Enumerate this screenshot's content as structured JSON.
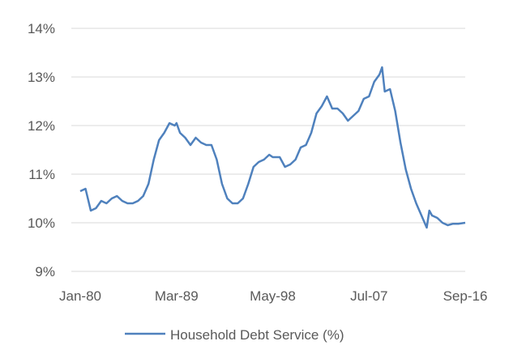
{
  "chart_data": {
    "type": "line",
    "title": "",
    "xlabel": "",
    "ylabel": "",
    "y_format": "percent",
    "ylim": [
      9,
      14
    ],
    "y_ticks": [
      9,
      10,
      11,
      12,
      13,
      14
    ],
    "y_tick_labels": [
      "9%",
      "10%",
      "11%",
      "12%",
      "13%",
      "14%"
    ],
    "x_ticks": [
      "Jan-80",
      "Mar-89",
      "May-98",
      "Jul-07",
      "Sep-16"
    ],
    "grid": true,
    "legend_position": "bottom",
    "series": [
      {
        "name": "Household Debt Service (%)",
        "color": "#4f81bd",
        "points": [
          [
            "Jan-80",
            10.65
          ],
          [
            "Jul-80",
            10.7
          ],
          [
            "Jan-81",
            10.25
          ],
          [
            "Jul-81",
            10.3
          ],
          [
            "Jan-82",
            10.45
          ],
          [
            "Jul-82",
            10.4
          ],
          [
            "Jan-83",
            10.5
          ],
          [
            "Jul-83",
            10.55
          ],
          [
            "Jan-84",
            10.45
          ],
          [
            "Jul-84",
            10.4
          ],
          [
            "Jan-85",
            10.4
          ],
          [
            "Jul-85",
            10.45
          ],
          [
            "Jan-86",
            10.55
          ],
          [
            "Jul-86",
            10.8
          ],
          [
            "Jan-87",
            11.3
          ],
          [
            "Jul-87",
            11.7
          ],
          [
            "Jan-88",
            11.85
          ],
          [
            "Jul-88",
            12.05
          ],
          [
            "Jan-89",
            12.0
          ],
          [
            "Mar-89",
            12.05
          ],
          [
            "Jul-89",
            11.85
          ],
          [
            "Jan-90",
            11.75
          ],
          [
            "Jul-90",
            11.6
          ],
          [
            "Jan-91",
            11.75
          ],
          [
            "Jul-91",
            11.65
          ],
          [
            "Jan-92",
            11.6
          ],
          [
            "Jul-92",
            11.6
          ],
          [
            "Jan-93",
            11.3
          ],
          [
            "Jul-93",
            10.8
          ],
          [
            "Jan-94",
            10.5
          ],
          [
            "Jul-94",
            10.4
          ],
          [
            "Jan-95",
            10.4
          ],
          [
            "Jul-95",
            10.5
          ],
          [
            "Jan-96",
            10.8
          ],
          [
            "Jul-96",
            11.15
          ],
          [
            "Jan-97",
            11.25
          ],
          [
            "Jul-97",
            11.3
          ],
          [
            "Jan-98",
            11.4
          ],
          [
            "May-98",
            11.35
          ],
          [
            "Jan-99",
            11.35
          ],
          [
            "Jul-99",
            11.15
          ],
          [
            "Jan-00",
            11.2
          ],
          [
            "Jul-00",
            11.3
          ],
          [
            "Jan-01",
            11.55
          ],
          [
            "Jul-01",
            11.6
          ],
          [
            "Jan-02",
            11.85
          ],
          [
            "Jul-02",
            12.25
          ],
          [
            "Jan-03",
            12.4
          ],
          [
            "Jul-03",
            12.6
          ],
          [
            "Jan-04",
            12.35
          ],
          [
            "Jul-04",
            12.35
          ],
          [
            "Jan-05",
            12.25
          ],
          [
            "Jul-05",
            12.1
          ],
          [
            "Jan-06",
            12.2
          ],
          [
            "Jul-06",
            12.3
          ],
          [
            "Jan-07",
            12.55
          ],
          [
            "Jul-07",
            12.6
          ],
          [
            "Jan-08",
            12.9
          ],
          [
            "Jul-08",
            13.05
          ],
          [
            "Oct-08",
            13.2
          ],
          [
            "Jan-09",
            12.7
          ],
          [
            "Jul-09",
            12.75
          ],
          [
            "Jan-10",
            12.3
          ],
          [
            "Jul-10",
            11.65
          ],
          [
            "Jan-11",
            11.1
          ],
          [
            "Jul-11",
            10.7
          ],
          [
            "Jan-12",
            10.4
          ],
          [
            "Jul-12",
            10.15
          ],
          [
            "Jan-13",
            9.9
          ],
          [
            "Apr-13",
            10.25
          ],
          [
            "Jul-13",
            10.15
          ],
          [
            "Jan-14",
            10.1
          ],
          [
            "Jul-14",
            10.0
          ],
          [
            "Jan-15",
            9.95
          ],
          [
            "Jul-15",
            9.98
          ],
          [
            "Jan-16",
            9.98
          ],
          [
            "Sep-16",
            10.0
          ]
        ]
      }
    ]
  }
}
